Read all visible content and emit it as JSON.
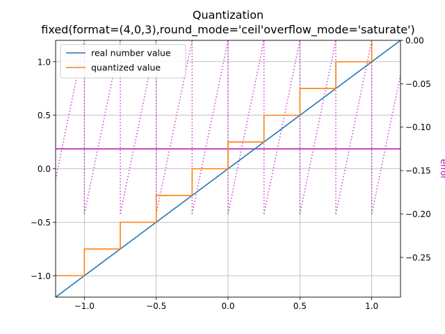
{
  "chart_data": {
    "type": "line",
    "title": "Quantization",
    "subtitle": "fixed(format=(4,0,3),round_mode='ceil'overflow_mode='saturate')",
    "xlim": [
      -1.2,
      1.2
    ],
    "ylim": [
      -1.2,
      1.2
    ],
    "y2lim": [
      -0.2958,
      0.0
    ],
    "y2label": "error",
    "grid": true,
    "legend_position": "top-left",
    "x_ticks": [
      -1.0,
      -0.5,
      0.0,
      0.5,
      1.0
    ],
    "x_tick_labels": [
      "−1.0",
      "−0.5",
      "0.0",
      "0.5",
      "1.0"
    ],
    "y_ticks": [
      -1.0,
      -0.5,
      0.0,
      0.5,
      1.0
    ],
    "y_tick_labels": [
      "−1.0",
      "−0.5",
      "0.0",
      "0.5",
      "1.0"
    ],
    "y2_ticks": [
      0.0,
      -0.05,
      -0.1,
      -0.15,
      -0.2,
      -0.25
    ],
    "y2_tick_labels": [
      "0.00",
      "−0.05",
      "−0.10",
      "−0.15",
      "−0.20",
      "−0.25"
    ],
    "quantization_step": 0.25,
    "series": [
      {
        "name": "real number value",
        "color": "#1f77b4",
        "axis": "left",
        "x": [
          -1.2,
          1.2
        ],
        "y": [
          -1.2,
          1.2
        ]
      },
      {
        "name": "quantized value",
        "color": "#ff7f0e",
        "axis": "left",
        "x": [
          -1.2,
          -1.0,
          -1.0,
          -0.75,
          -0.75,
          -0.5,
          -0.5,
          -0.25,
          -0.25,
          0.0,
          0.0,
          0.25,
          0.25,
          0.5,
          0.5,
          0.75,
          0.75,
          1.0,
          1.0
        ],
        "y": [
          -1.0,
          -1.0,
          -0.75,
          -0.75,
          -0.5,
          -0.5,
          -0.25,
          -0.25,
          0.0,
          0.0,
          0.25,
          0.25,
          0.5,
          0.5,
          0.75,
          0.75,
          1.0,
          1.0,
          1.2
        ]
      },
      {
        "name": "",
        "color": "#cc33cc",
        "axis": "right",
        "style": "dotted",
        "x": [
          -1.2,
          1.2
        ],
        "y": [
          -0.2,
          0.0
        ]
      },
      {
        "name": "",
        "color": "#bb22bb",
        "axis": "right",
        "style": "solid",
        "x": [
          -1.2,
          1.2
        ],
        "y": [
          -0.125,
          -0.125
        ]
      }
    ]
  }
}
